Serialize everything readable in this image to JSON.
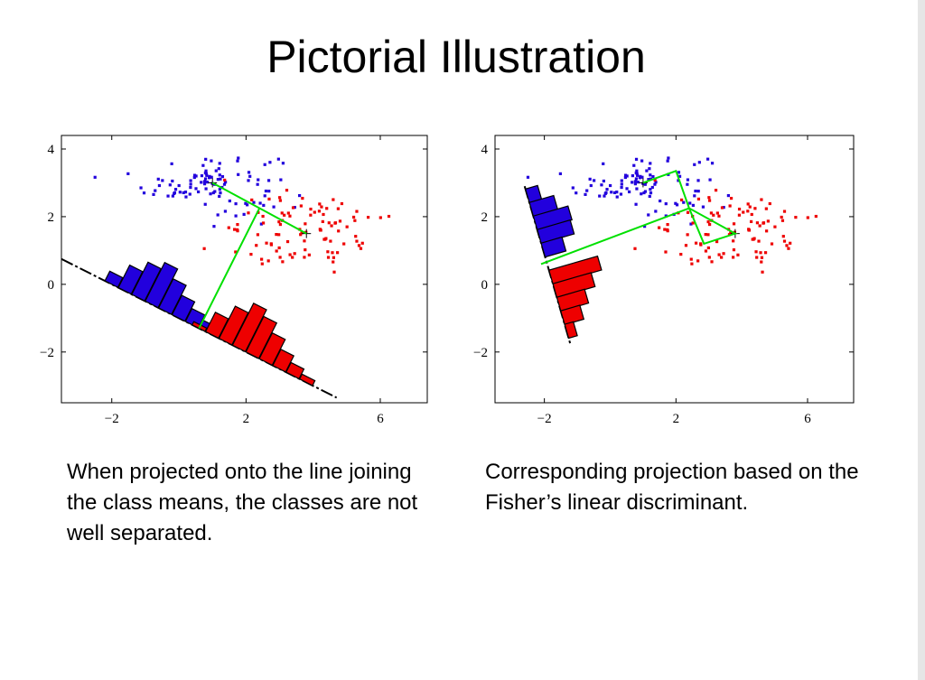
{
  "slide": {
    "title": "Pictorial Illustration",
    "caption_left": "When projected onto the line joining the class means, the classes are not well separated.",
    "caption_right": "Corresponding projection based on the Fisher’s linear discriminant."
  },
  "colors": {
    "class1": "#2200dd",
    "class2": "#ee0000",
    "projection_line": "#00e000",
    "histogram_edge": "#000000"
  },
  "chart_data": [
    {
      "type": "scatter",
      "title": "",
      "xlabel": "",
      "ylabel": "",
      "xlim": [
        -3.5,
        7.4
      ],
      "ylim": [
        -3.5,
        4.4
      ],
      "xticks": [
        -2,
        2,
        6
      ],
      "yticks": [
        -2,
        0,
        2,
        4
      ],
      "grid": false,
      "series": [
        {
          "color": "#2200dd",
          "mean": [
            1.0,
            3.0
          ],
          "spread": [
            1.0,
            0.45
          ],
          "count": 100
        },
        {
          "color": "#ee0000",
          "mean": [
            3.8,
            1.5
          ],
          "spread": [
            1.1,
            0.55
          ],
          "count": 100
        }
      ],
      "projection_direction": "line joining the class means",
      "projection_line": {
        "x": [
          -3.5,
          4.7
        ],
        "y": [
          0.75,
          -3.35
        ]
      },
      "green_path": {
        "x": [
          1.0,
          2.4,
          3.8,
          2.4,
          0.6
        ],
        "y": [
          3.0,
          2.25,
          1.5,
          2.25,
          -1.3
        ]
      },
      "histograms": [
        {
          "color": "#2200dd",
          "t": [
            -2.0,
            -1.6,
            -1.2,
            -0.8,
            -0.4,
            0.0,
            0.4,
            0.8,
            1.2
          ],
          "counts": [
            0.3,
            0.7,
            1.0,
            1.2,
            0.9,
            0.6,
            0.4,
            0.25,
            0.1
          ]
        },
        {
          "color": "#ee0000",
          "t": [
            0.6,
            1.0,
            1.4,
            1.8,
            2.2,
            2.6,
            3.0,
            3.4,
            3.8
          ],
          "counts": [
            0.1,
            0.6,
            1.0,
            1.3,
            1.1,
            0.8,
            0.5,
            0.3,
            0.15
          ]
        }
      ]
    },
    {
      "type": "scatter",
      "title": "",
      "xlabel": "",
      "ylabel": "",
      "xlim": [
        -3.5,
        7.4
      ],
      "ylim": [
        -3.5,
        4.4
      ],
      "xticks": [
        -2,
        2,
        6
      ],
      "yticks": [
        -2,
        0,
        2,
        4
      ],
      "grid": false,
      "series": [
        {
          "color": "#2200dd",
          "mean": [
            1.0,
            3.0
          ],
          "spread": [
            1.0,
            0.45
          ],
          "count": 100
        },
        {
          "color": "#ee0000",
          "mean": [
            3.8,
            1.5
          ],
          "spread": [
            1.1,
            0.55
          ],
          "count": 100
        }
      ],
      "projection_direction": "Fisher's linear discriminant",
      "projection_line": {
        "x": [
          -2.6,
          -1.2
        ],
        "y": [
          2.9,
          -1.8
        ]
      },
      "green_path": {
        "x": [
          1.0,
          2.0,
          2.4,
          2.85,
          3.8,
          2.4,
          -2.1
        ],
        "y": [
          3.0,
          3.35,
          2.25,
          1.2,
          1.5,
          2.25,
          0.6
        ]
      },
      "histograms": [
        {
          "color": "#2200dd",
          "t": [
            2.6,
            2.2,
            1.8,
            1.4,
            1.0
          ],
          "counts": [
            0.35,
            0.7,
            1.0,
            0.95,
            0.6
          ]
        },
        {
          "color": "#ee0000",
          "t": [
            0.2,
            -0.2,
            -0.6,
            -1.0,
            -1.4
          ],
          "counts": [
            1.4,
            1.1,
            0.8,
            0.55,
            0.25
          ]
        }
      ]
    }
  ]
}
